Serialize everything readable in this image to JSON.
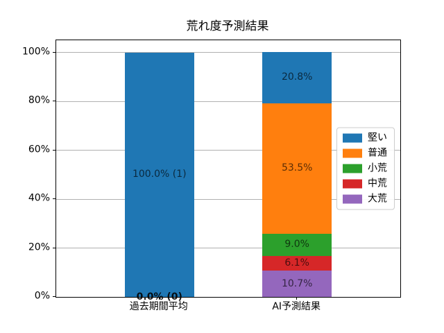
{
  "chart_data": {
    "type": "bar",
    "stacked": true,
    "title": "荒れ度予測結果",
    "categories": [
      "過去期間平均",
      "AI予測結果"
    ],
    "series": [
      {
        "name": "堅い",
        "color": "#1f77b4",
        "values": [
          100.0,
          20.8
        ]
      },
      {
        "name": "普通",
        "color": "#ff7f0e",
        "values": [
          0.0,
          53.5
        ]
      },
      {
        "name": "小荒",
        "color": "#2ca02c",
        "values": [
          0.0,
          9.0
        ]
      },
      {
        "name": "中荒",
        "color": "#d62728",
        "values": [
          0.0,
          6.1
        ]
      },
      {
        "name": "大荒",
        "color": "#9467bd",
        "values": [
          0.0,
          10.7
        ]
      }
    ],
    "bars": [
      {
        "category": "過去期間平均",
        "segments": [
          {
            "series": "堅い",
            "pct": 100.0,
            "label": "100.0% (1)",
            "color": "#1f77b4"
          }
        ],
        "baseline_label": "0.0% (0)"
      },
      {
        "category": "AI予測結果",
        "segments": [
          {
            "series": "大荒",
            "pct": 10.7,
            "label": "10.7%",
            "color": "#9467bd"
          },
          {
            "series": "中荒",
            "pct": 6.1,
            "label": "6.1%",
            "color": "#d62728"
          },
          {
            "series": "小荒",
            "pct": 9.0,
            "label": "9.0%",
            "color": "#2ca02c"
          },
          {
            "series": "普通",
            "pct": 53.5,
            "label": "53.5%",
            "color": "#ff7f0e"
          },
          {
            "series": "堅い",
            "pct": 20.8,
            "label": "20.8%",
            "color": "#1f77b4"
          }
        ],
        "baseline_label": ""
      }
    ],
    "yticks": [
      {
        "value": 0,
        "label": "0%"
      },
      {
        "value": 20,
        "label": "20%"
      },
      {
        "value": 40,
        "label": "40%"
      },
      {
        "value": 60,
        "label": "60%"
      },
      {
        "value": 80,
        "label": "80%"
      },
      {
        "value": 100,
        "label": "100%"
      }
    ],
    "ylim": [
      0,
      105
    ],
    "grid": "horizontal",
    "grid_color": "#b0b0b0",
    "legend": {
      "position": "center-right",
      "items": [
        {
          "label": "堅い",
          "color": "#1f77b4"
        },
        {
          "label": "普通",
          "color": "#ff7f0e"
        },
        {
          "label": "小荒",
          "color": "#2ca02c"
        },
        {
          "label": "中荒",
          "color": "#d62728"
        },
        {
          "label": "大荒",
          "color": "#9467bd"
        }
      ]
    }
  }
}
